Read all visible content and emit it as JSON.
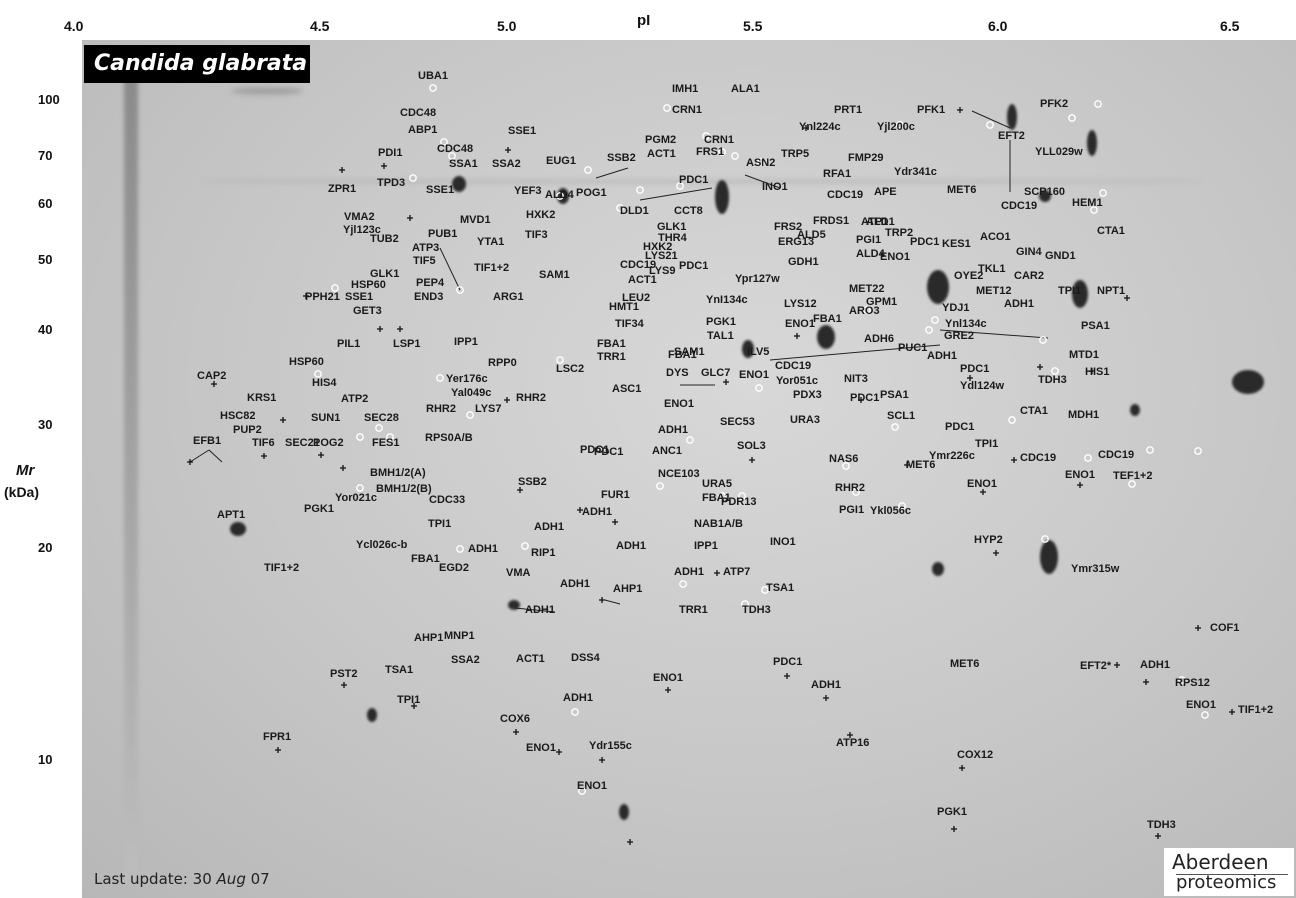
{
  "title": {
    "species": "Candida glabrata"
  },
  "axes": {
    "x_title": "pI",
    "x_ticks": [
      "4.0",
      "4.5",
      "5.0",
      "5.5",
      "6.0",
      "6.5"
    ],
    "y_title": "Mr",
    "y_unit": "(kDa)",
    "y_ticks": [
      "100",
      "70",
      "60",
      "50",
      "40",
      "30",
      "20",
      "10"
    ]
  },
  "footer": {
    "update_prefix": "Last update: 30 ",
    "update_month": "Aug",
    "update_suffix": " 07",
    "logo_line1": "Aberdeen",
    "logo_line2": "proteomics"
  },
  "labels": [
    "UBA1",
    "IMH1",
    "ALA1",
    "CDC48",
    "CRN1",
    "PRT1",
    "PFK1",
    "PFK2",
    "ABP1",
    "SSE1",
    "CDC48",
    "Ynl224c",
    "Yjl200c",
    "PGM2",
    "CRN1",
    "EFT2",
    "PDI1",
    "SSA1",
    "SSA2",
    "ACT1",
    "FRS1",
    "ASN2",
    "TRP5",
    "FMP29",
    "YLL029w",
    "EUG1",
    "SSB2",
    "RFA1",
    "Ydr341c",
    "TPD3",
    "YEF3",
    "INO1",
    "PDC1",
    "MET6",
    "CDC19",
    "ZPR1",
    "SSE1",
    "ALD4",
    "POG1",
    "CDC19",
    "APE",
    "SCP160",
    "HXK2",
    "MVD1",
    "DLD1",
    "CCT8",
    "GLK1",
    "FRS2",
    "FRDS1",
    "ALD1",
    "HEM1",
    "VMA2",
    "PUB1",
    "HXK2",
    "THR4",
    "ERG13",
    "TRP2",
    "Yjl123c",
    "TUB2",
    "YTA1",
    "TIF3",
    "ALD5",
    "PGI1",
    "ATP1",
    "CTA1",
    "ATP3",
    "LYS21",
    "PDC1",
    "ACO1",
    "GND1",
    "TIF5",
    "TIF1+2",
    "CDC19",
    "LYS9",
    "PDC1",
    "GDH1",
    "ALD4",
    "ENO1",
    "KES1",
    "GIN4",
    "TKL1",
    "CAR2",
    "HSP60",
    "PEP4",
    "SAM1",
    "ACT1",
    "Ypr127w",
    "ARO3",
    "MET22",
    "OYE2",
    "MET12",
    "TPI1",
    "NPT1",
    "GLK1",
    "END3",
    "ARG1",
    "HMT1",
    "LEU2",
    "YnI134c",
    "GPM1",
    "ADH1",
    "PPH21",
    "SSE1",
    "TIF34",
    "PGK1",
    "LYS12",
    "ENO1",
    "FBA1",
    "YDJ1",
    "Ynl134c",
    "GET3",
    "SAM1",
    "TAL1",
    "ADH6",
    "GRE2",
    "PSA1",
    "PIL1",
    "LSP1",
    "IPP1",
    "FBA1",
    "TRR1",
    "ILV5",
    "PUC1",
    "MTD1",
    "HSP60",
    "RPP0",
    "LSC2",
    "FBA1",
    "CDC19",
    "ADH1",
    "PDC1",
    "HIS1",
    "CAP2",
    "HIS4",
    "Yer176c",
    "DYS",
    "GLC7",
    "ENO1",
    "Yor051c",
    "NIT3",
    "Ydl124w",
    "TDH3",
    "Yal049c",
    "ASC1",
    "PDX3",
    "PSA1",
    "KRS1",
    "ATP2",
    "RHR2",
    "PDC1",
    "ENO1",
    "PDC1",
    "MDH1",
    "HSC82",
    "PUP2",
    "RHR2",
    "LYS7",
    "SEC53",
    "URA3",
    "SCL1",
    "CTA1",
    "SUN1",
    "SEC28",
    "ADH1",
    "PDC1",
    "EFB1",
    "TIF6",
    "SEC21",
    "POG2",
    "FES1",
    "RPS0A/B",
    "PDC1",
    "ANC1",
    "SOL3",
    "TPI1",
    "Ymr226c",
    "CDC19",
    "CDC19",
    "NAS6",
    "MET6",
    "ENO1",
    "TEF1+2",
    "BMH1/2(A)",
    "NCE103",
    "ENO1",
    "BMH1/2(B)",
    "SSB2",
    "URA5",
    "RHR2",
    "Yor021c",
    "CDC33",
    "FBA1",
    "FUR1",
    "PDR13",
    "PGK1",
    "ADH1",
    "PGI1",
    "Ykl056c",
    "APT1",
    "TPI1",
    "ADH1",
    "NAB1A/B",
    "Ycl026c-b",
    "HYP2",
    "FBA1",
    "ADH1",
    "ADH1",
    "IPP1",
    "TIF1+2",
    "EGD2",
    "VMA",
    "RIP1",
    "INO1",
    "ADH1",
    "ATP7",
    "Ymr315w",
    "TSA1",
    "ADH1",
    "AHP1",
    "ADH1",
    "TRR1",
    "TDH3",
    "COF1",
    "AHP1",
    "MNP1",
    "SSA2",
    "ACT1",
    "DSS4",
    "TSA1",
    "PST2",
    "PDC1",
    "ENO1",
    "ADH1",
    "MET6",
    "EFT2*",
    "ADH1",
    "RPS12",
    "TPI1",
    "ADH1",
    "ENO1",
    "TIF1+2",
    "COX6",
    "FPR1",
    "ATP16",
    "ENO1",
    "Ydr155c",
    "COX12",
    "ENO1",
    "PGK1",
    "TDH3"
  ]
}
